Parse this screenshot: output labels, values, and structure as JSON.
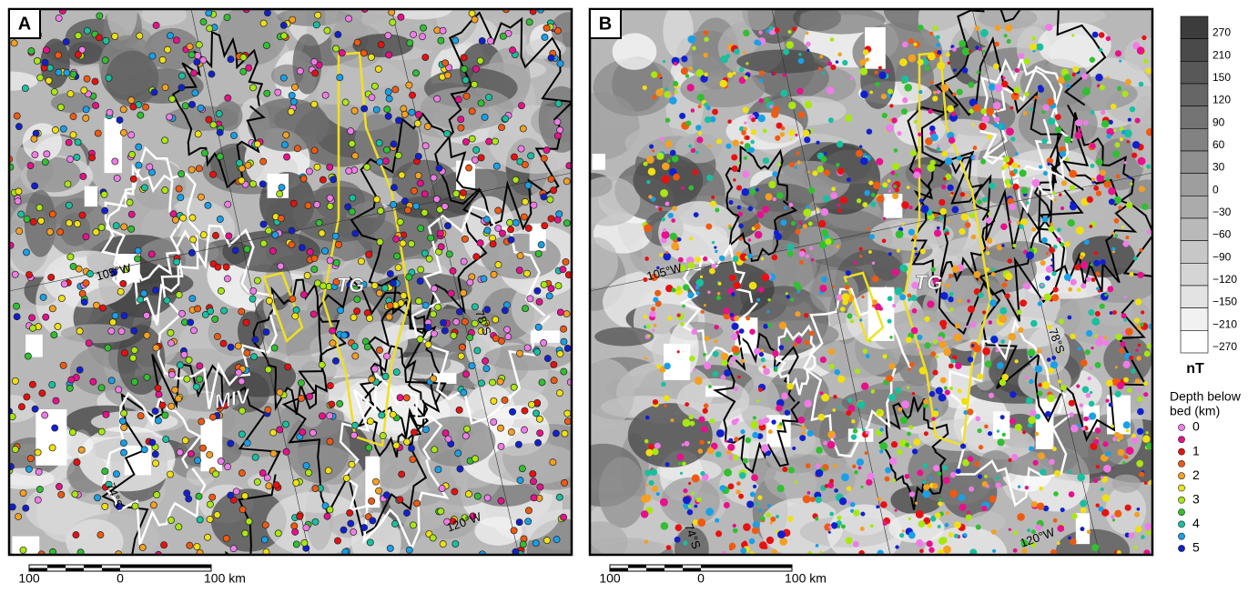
{
  "panels": [
    {
      "label": "A",
      "place_labels": [
        "105°W",
        "78°S",
        "74°S",
        "120°W",
        "TG",
        "MIV"
      ],
      "scale_bar": [
        "100",
        "0",
        "100 km"
      ]
    },
    {
      "label": "B",
      "place_labels": [
        "105°W",
        "78°S",
        "74°S",
        "120°W",
        "TG"
      ],
      "scale_bar": [
        "100",
        "0",
        "100 km"
      ]
    }
  ],
  "colorbar": {
    "ticks": [
      "270",
      "210",
      "150",
      "120",
      "90",
      "60",
      "30",
      "0",
      "−30",
      "−60",
      "−90",
      "−120",
      "−150",
      "−210",
      "−270"
    ],
    "unit": "nT"
  },
  "legend": {
    "title": [
      "Depth below",
      "bed (km)"
    ],
    "labels": [
      "0",
      "1",
      "2",
      "3",
      "4",
      "5"
    ],
    "colors": [
      "#f07ce8",
      "#e8108c",
      "#e81010",
      "#f05a10",
      "#f4a020",
      "#f0e010",
      "#a8e810",
      "#30c030",
      "#18c0a0",
      "#18a0e8",
      "#1020d0"
    ]
  }
}
